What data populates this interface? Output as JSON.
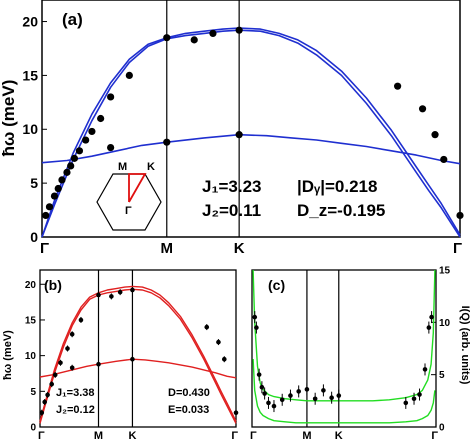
{
  "chart_data": [
    {
      "type": "line",
      "panel_label": "(a)",
      "ylabel": "ħω (meV)",
      "ylim": [
        0,
        22
      ],
      "yticks": [
        "0",
        "5",
        "10",
        "15",
        "20"
      ],
      "xticks": [
        "Γ",
        "M",
        "K",
        "Γ"
      ],
      "xlim": [
        0,
        3.35
      ],
      "vlines": [
        1,
        1.58
      ],
      "params": {
        "j1": "J₁=3.23",
        "j2": "J₂=0.11",
        "dy": "|Dᵧ|=0.218",
        "dz": "D_z=-0.195"
      },
      "inset": {
        "m": "M",
        "k": "K",
        "g": "Γ"
      },
      "colors": {
        "curve": "#1f2fd0",
        "inset_path": "#e01010"
      },
      "series": [
        {
          "x": [
            0,
            0.1,
            0.25,
            0.4,
            0.55,
            0.7,
            0.85,
            1,
            1.15,
            1.3,
            1.45,
            1.58,
            1.75,
            1.9,
            2.05,
            2.2,
            2.4,
            2.6,
            2.8,
            3.0,
            3.1,
            3.2,
            3.35
          ],
          "y": [
            0,
            3.0,
            7.2,
            10.8,
            13.9,
            16.2,
            17.7,
            18.4,
            18.7,
            18.9,
            19.1,
            19.2,
            19.1,
            18.7,
            18.0,
            16.9,
            15.0,
            12.4,
            9.4,
            6.0,
            4.3,
            2.7,
            0
          ]
        },
        {
          "x": [
            0,
            0.1,
            0.25,
            0.4,
            0.55,
            0.7,
            0.85,
            1,
            1.15,
            1.3,
            1.45,
            1.58,
            1.75,
            1.9,
            2.05,
            2.2,
            2.4,
            2.6,
            2.8,
            3.0,
            3.1,
            3.2,
            3.35
          ],
          "y": [
            0,
            3.4,
            7.8,
            11.4,
            14.3,
            16.5,
            17.9,
            18.5,
            18.9,
            19.1,
            19.3,
            19.4,
            19.3,
            18.9,
            18.3,
            17.3,
            15.4,
            12.9,
            9.9,
            6.5,
            4.8,
            3.1,
            0.2
          ]
        },
        {
          "x": [
            0,
            0.2,
            0.4,
            0.6,
            0.8,
            1,
            1.3,
            1.58,
            1.8,
            2.0,
            2.2,
            2.4,
            2.6,
            2.8,
            3.0,
            3.2,
            3.35
          ],
          "y": [
            6.9,
            7.1,
            7.5,
            8.0,
            8.5,
            8.8,
            9.2,
            9.5,
            9.4,
            9.2,
            9.0,
            8.7,
            8.4,
            8.0,
            7.6,
            7.1,
            6.8
          ]
        }
      ],
      "points": [
        {
          "x": 0.03,
          "y": 2.0
        },
        {
          "x": 0.06,
          "y": 2.8
        },
        {
          "x": 0.1,
          "y": 3.8
        },
        {
          "x": 0.13,
          "y": 4.5
        },
        {
          "x": 0.16,
          "y": 5.3
        },
        {
          "x": 0.2,
          "y": 6.0
        },
        {
          "x": 0.23,
          "y": 6.6
        },
        {
          "x": 0.26,
          "y": 7.3
        },
        {
          "x": 0.3,
          "y": 8.0
        },
        {
          "x": 0.35,
          "y": 9.0
        },
        {
          "x": 0.4,
          "y": 9.8
        },
        {
          "x": 0.47,
          "y": 11.0
        },
        {
          "x": 0.55,
          "y": 13.0
        },
        {
          "x": 0.7,
          "y": 15.0
        },
        {
          "x": 1.0,
          "y": 18.5
        },
        {
          "x": 1.22,
          "y": 18.3
        },
        {
          "x": 1.37,
          "y": 18.9
        },
        {
          "x": 1.58,
          "y": 19.2
        },
        {
          "x": 2.85,
          "y": 14.0
        },
        {
          "x": 3.05,
          "y": 11.9
        },
        {
          "x": 3.15,
          "y": 9.5
        },
        {
          "x": 3.22,
          "y": 7.2
        },
        {
          "x": 3.35,
          "y": 2.0
        },
        {
          "x": 0.55,
          "y": 8.3
        },
        {
          "x": 1.0,
          "y": 8.8
        },
        {
          "x": 1.58,
          "y": 9.5
        }
      ]
    },
    {
      "type": "line",
      "panel_label": "(b)",
      "ylabel": "ħω (meV)",
      "ylim": [
        0,
        22
      ],
      "yticks": [
        "0",
        "5",
        "10",
        "15",
        "20"
      ],
      "xticks": [
        "Γ",
        "M",
        "K",
        "Γ"
      ],
      "xlim": [
        0,
        3.35
      ],
      "vlines": [
        1,
        1.58
      ],
      "params": {
        "j1": "J₁=3.38",
        "j2": "J₂=0.12",
        "d": "D=0.430",
        "e": "E=0.033"
      },
      "colors": {
        "curve": "#e02020"
      },
      "series": [
        {
          "x": [
            0,
            0.1,
            0.25,
            0.4,
            0.55,
            0.7,
            0.85,
            1,
            1.15,
            1.3,
            1.45,
            1.58,
            1.75,
            1.9,
            2.05,
            2.2,
            2.4,
            2.6,
            2.8,
            3.0,
            3.1,
            3.2,
            3.35
          ],
          "y": [
            0.5,
            3.4,
            7.6,
            11.2,
            14.2,
            16.4,
            17.9,
            18.5,
            18.8,
            19.0,
            19.2,
            19.3,
            19.2,
            18.8,
            18.1,
            17.0,
            15.1,
            12.5,
            9.5,
            6.2,
            4.5,
            2.9,
            0.5
          ]
        },
        {
          "x": [
            0,
            0.1,
            0.25,
            0.4,
            0.55,
            0.7,
            0.85,
            1,
            1.15,
            1.3,
            1.45,
            1.58,
            1.75,
            1.9,
            2.05,
            2.2,
            2.4,
            2.6,
            2.8,
            3.0,
            3.1,
            3.2,
            3.35
          ],
          "y": [
            0.8,
            3.8,
            8.1,
            11.7,
            14.6,
            16.8,
            18.2,
            18.8,
            19.2,
            19.4,
            19.6,
            19.7,
            19.6,
            19.2,
            18.5,
            17.4,
            15.5,
            12.9,
            9.9,
            6.6,
            4.9,
            3.3,
            0.8
          ]
        },
        {
          "x": [
            0,
            0.2,
            0.4,
            0.6,
            0.8,
            1,
            1.3,
            1.58,
            1.8,
            2.0,
            2.2,
            2.4,
            2.6,
            2.8,
            3.0,
            3.2,
            3.35
          ],
          "y": [
            7.0,
            7.3,
            7.7,
            8.1,
            8.5,
            8.8,
            9.2,
            9.5,
            9.4,
            9.2,
            9.0,
            8.7,
            8.4,
            8.0,
            7.6,
            7.1,
            6.9
          ]
        }
      ],
      "points": [
        {
          "x": 0.03,
          "y": 2.0
        },
        {
          "x": 0.08,
          "y": 3.5
        },
        {
          "x": 0.13,
          "y": 4.5
        },
        {
          "x": 0.2,
          "y": 6.0
        },
        {
          "x": 0.26,
          "y": 7.3
        },
        {
          "x": 0.35,
          "y": 9.0
        },
        {
          "x": 0.47,
          "y": 11.0
        },
        {
          "x": 0.55,
          "y": 13.0
        },
        {
          "x": 0.7,
          "y": 15.0
        },
        {
          "x": 1.0,
          "y": 18.5
        },
        {
          "x": 1.22,
          "y": 18.3
        },
        {
          "x": 1.37,
          "y": 18.9
        },
        {
          "x": 1.58,
          "y": 19.2
        },
        {
          "x": 2.85,
          "y": 14.0
        },
        {
          "x": 3.05,
          "y": 11.9
        },
        {
          "x": 3.15,
          "y": 9.5
        },
        {
          "x": 3.35,
          "y": 2.0
        },
        {
          "x": 0.55,
          "y": 8.3
        },
        {
          "x": 1.0,
          "y": 8.8
        },
        {
          "x": 1.58,
          "y": 9.5
        }
      ]
    },
    {
      "type": "line",
      "panel_label": "(c)",
      "ylabel": "I(Q) (arb. units)",
      "ylim": [
        0,
        15
      ],
      "yticks": [
        "0",
        "5",
        "10",
        "15"
      ],
      "xticks": [
        "Γ",
        "M",
        "K",
        "Γ"
      ],
      "xlim": [
        0,
        3.35
      ],
      "vlines": [
        1.0,
        1.58
      ],
      "colors": {
        "curve": "#22dd22"
      },
      "series": [
        {
          "x": [
            0.02,
            0.05,
            0.1,
            0.15,
            0.2,
            0.3,
            0.4,
            0.6,
            0.8,
            1.0,
            1.3,
            1.58,
            1.9,
            2.2,
            2.5,
            2.8,
            3.0,
            3.1,
            3.2,
            3.26,
            3.3,
            3.33
          ],
          "y": [
            15,
            10,
            5.8,
            4.2,
            3.6,
            3.1,
            2.9,
            2.7,
            2.6,
            2.5,
            2.5,
            2.5,
            2.5,
            2.5,
            2.6,
            2.8,
            3.1,
            3.5,
            4.5,
            6.0,
            9.0,
            15
          ]
        },
        {
          "x": [
            0.02,
            0.05,
            0.1,
            0.15,
            0.2,
            0.3,
            0.4,
            0.6,
            0.8,
            1.0,
            1.3,
            1.58,
            1.9,
            2.2,
            2.5,
            2.8,
            3.0,
            3.1,
            3.2,
            3.26,
            3.3,
            3.33
          ],
          "y": [
            6.5,
            3.5,
            2.0,
            1.4,
            1.1,
            0.8,
            0.6,
            0.5,
            0.4,
            0.4,
            0.4,
            0.4,
            0.4,
            0.4,
            0.4,
            0.5,
            0.6,
            0.8,
            1.1,
            1.6,
            2.3,
            3.5
          ]
        }
      ],
      "points": [
        {
          "x": 0.05,
          "y": 10.5
        },
        {
          "x": 0.08,
          "y": 9.5
        },
        {
          "x": 0.13,
          "y": 5.0
        },
        {
          "x": 0.18,
          "y": 3.8
        },
        {
          "x": 0.23,
          "y": 3.2
        },
        {
          "x": 0.3,
          "y": 2.3
        },
        {
          "x": 0.4,
          "y": 2.0
        },
        {
          "x": 0.55,
          "y": 2.6
        },
        {
          "x": 0.7,
          "y": 3.0
        },
        {
          "x": 0.85,
          "y": 3.4
        },
        {
          "x": 1.0,
          "y": 3.6
        },
        {
          "x": 1.15,
          "y": 2.7
        },
        {
          "x": 1.3,
          "y": 3.5
        },
        {
          "x": 1.45,
          "y": 2.8
        },
        {
          "x": 1.58,
          "y": 3.0
        },
        {
          "x": 2.8,
          "y": 2.3
        },
        {
          "x": 2.95,
          "y": 2.7
        },
        {
          "x": 3.05,
          "y": 3.1
        },
        {
          "x": 3.15,
          "y": 5.5
        },
        {
          "x": 3.22,
          "y": 9.5
        },
        {
          "x": 3.27,
          "y": 10.5
        }
      ]
    }
  ]
}
